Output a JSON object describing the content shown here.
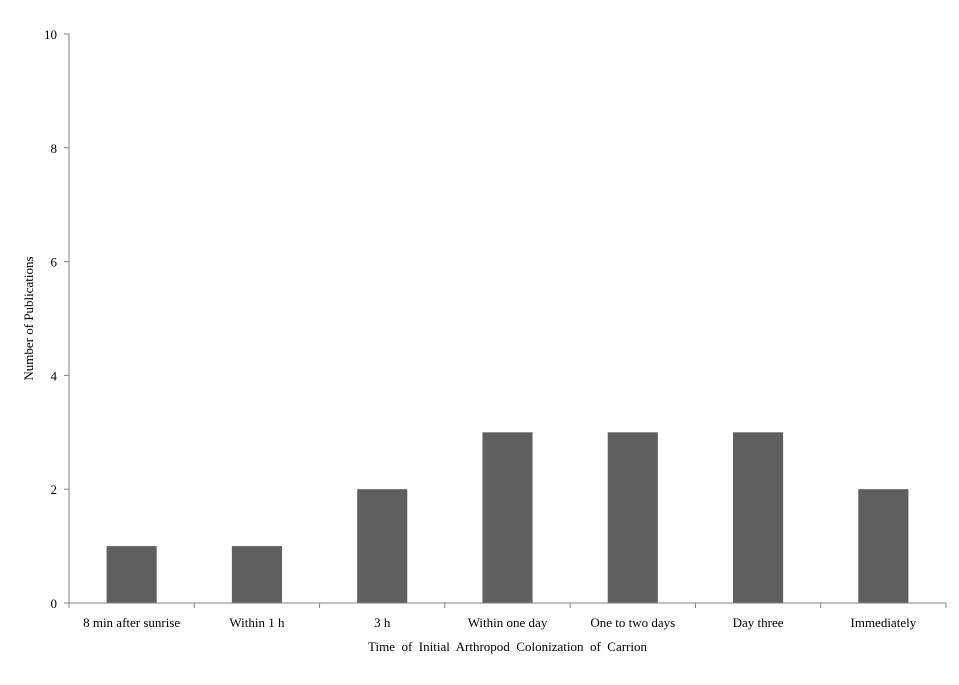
{
  "chart_data": {
    "type": "bar",
    "categories": [
      "8 min after sunrise",
      "Within 1 h",
      "3 h",
      "Within one day",
      "One to two days",
      "Day three",
      "Immediately"
    ],
    "values": [
      1,
      1,
      2,
      3,
      3,
      3,
      2
    ],
    "xlabel": "Time  of  Initial  Arthropod  Colonization  of  Carrion",
    "ylabel": "Number of Publications",
    "ylim": [
      0,
      10
    ],
    "yticks": [
      0,
      2,
      4,
      6,
      8,
      10
    ],
    "grid": false,
    "legend": "none",
    "bar_color": "#5f5f5f",
    "axis_color": "#808080"
  }
}
